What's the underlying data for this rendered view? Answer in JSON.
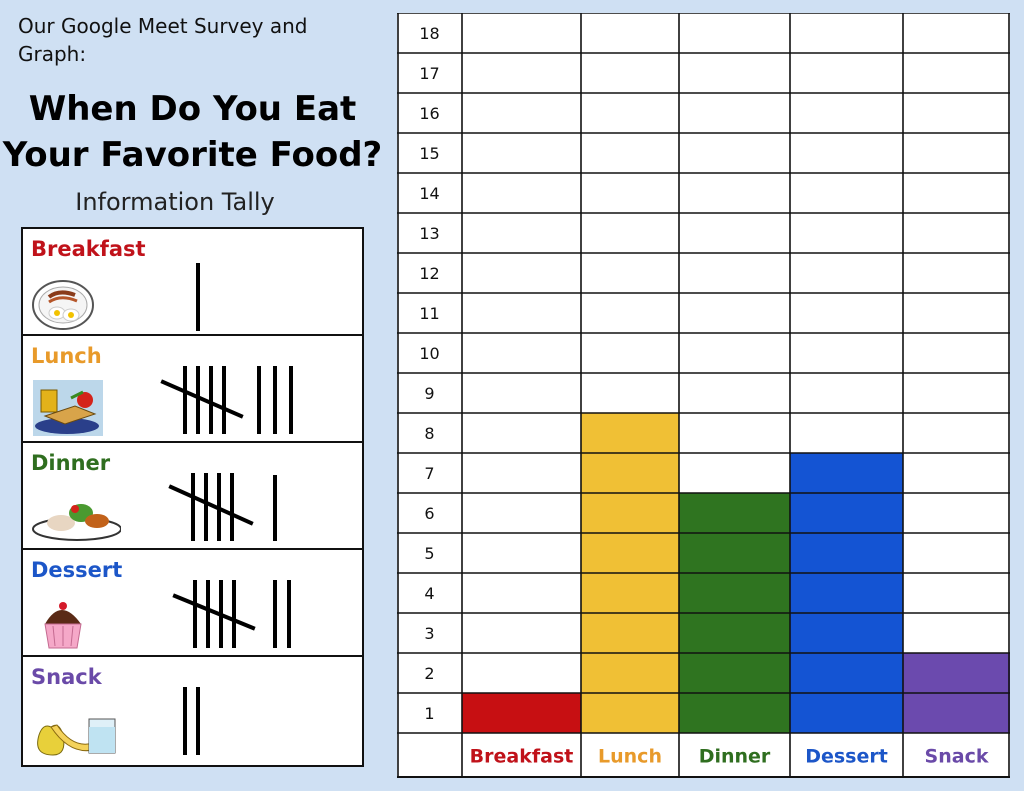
{
  "intro": "Our Google Meet Survey and Graph:",
  "title_line1": "When Do You Eat",
  "title_line2": "Your Favorite Food?",
  "tally_title": "Information Tally",
  "tally": [
    {
      "label": "Breakfast",
      "color": "#c0121a",
      "icon": "breakfast-plate-icon",
      "count": 1
    },
    {
      "label": "Lunch",
      "color": "#e89a2a",
      "icon": "lunch-tray-icon",
      "count": 8
    },
    {
      "label": "Dinner",
      "color": "#2f6e1f",
      "icon": "dinner-plate-icon",
      "count": 6
    },
    {
      "label": "Dessert",
      "color": "#1c56c8",
      "icon": "cupcake-icon",
      "count": 7
    },
    {
      "label": "Snack",
      "color": "#6a4aa8",
      "icon": "snack-fruit-icon",
      "count": 2
    }
  ],
  "chart_data": {
    "type": "bar",
    "categories": [
      "Breakfast",
      "Lunch",
      "Dinner",
      "Dessert",
      "Snack"
    ],
    "values": [
      1,
      8,
      6,
      7,
      2
    ],
    "colors": [
      "#c70f12",
      "#f0c035",
      "#2f7420",
      "#1454d3",
      "#6b4aae"
    ],
    "label_colors": [
      "#c0121a",
      "#e89a2a",
      "#2f6e1f",
      "#1c56c8",
      "#6a4aa8"
    ],
    "y_ticks": [
      1,
      2,
      3,
      4,
      5,
      6,
      7,
      8,
      9,
      10,
      11,
      12,
      13,
      14,
      15,
      16,
      17,
      18
    ],
    "ylim": [
      0,
      18
    ],
    "grid": true
  }
}
